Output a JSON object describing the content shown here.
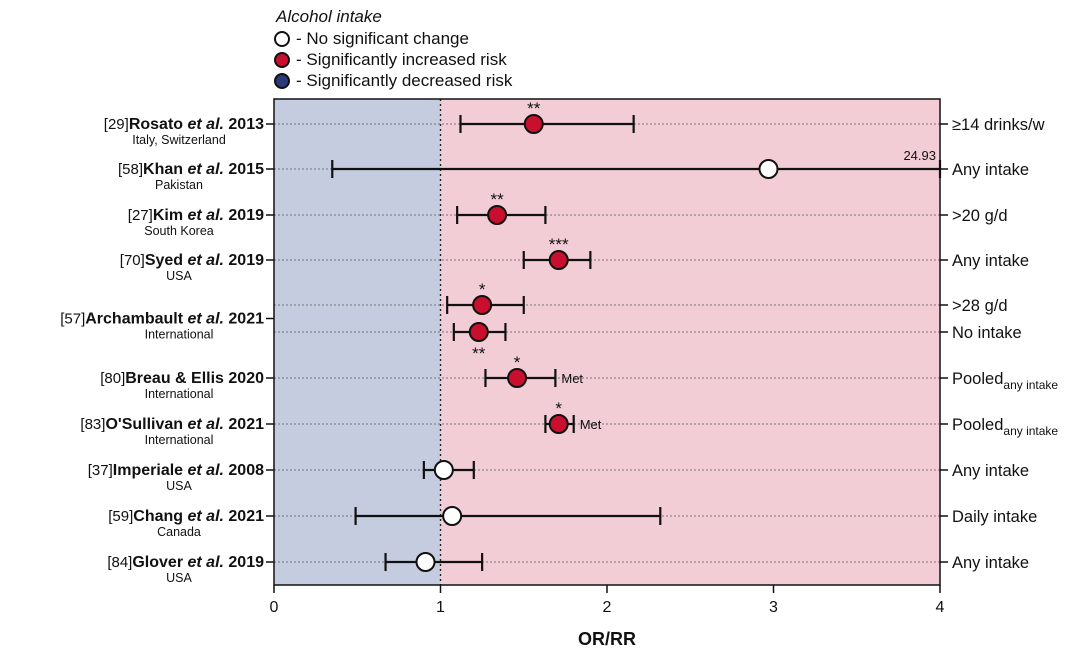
{
  "legend": {
    "title": "Alcohol intake",
    "items": [
      {
        "label": "- No significant change",
        "color": "#ffffff"
      },
      {
        "label": "- Significantly increased risk",
        "color": "#c8102e"
      },
      {
        "label": "- Significantly decreased risk",
        "color": "#2b3a78"
      }
    ]
  },
  "colors": {
    "decreased_region": "#c5ccdf",
    "increased_region": "#f2cdd5",
    "no_change": "#ffffff",
    "increased": "#c8102e",
    "decreased": "#2b3a78"
  },
  "chart_data": {
    "type": "scatter",
    "subtype": "forest-plot",
    "xlabel": "OR/RR",
    "xlim": [
      0,
      4
    ],
    "xticks": [
      0,
      1,
      2,
      3,
      4
    ],
    "reference_line": 1,
    "studies": [
      {
        "ref": "[29]",
        "author": "Rosato",
        "etal": true,
        "year": "2013",
        "location": "Italy, Switzerland",
        "rows": [
          {
            "estimate": 1.56,
            "lower": 1.12,
            "upper": 2.16,
            "sig": "**",
            "sig_pos": "above",
            "result": "increased",
            "exposure": "≥14 drinks/w"
          }
        ]
      },
      {
        "ref": "[58]",
        "author": "Khan",
        "etal": true,
        "year": "2015",
        "location": "Pakistan",
        "rows": [
          {
            "estimate": 2.97,
            "lower": 0.35,
            "upper": 24.93,
            "upper_label": "24.93",
            "sig": "",
            "result": "none",
            "exposure": "Any intake"
          }
        ]
      },
      {
        "ref": "[27]",
        "author": "Kim",
        "etal": true,
        "year": "2019",
        "location": "South Korea",
        "rows": [
          {
            "estimate": 1.34,
            "lower": 1.1,
            "upper": 1.63,
            "sig": "**",
            "sig_pos": "above",
            "result": "increased",
            "exposure": ">20 g/d"
          }
        ]
      },
      {
        "ref": "[70]",
        "author": "Syed",
        "etal": true,
        "year": "2019",
        "location": "USA",
        "rows": [
          {
            "estimate": 1.71,
            "lower": 1.5,
            "upper": 1.9,
            "sig": "***",
            "sig_pos": "above",
            "result": "increased",
            "exposure": "Any intake"
          }
        ]
      },
      {
        "ref": "[57]",
        "author": "Archambault",
        "etal": true,
        "year": "2021",
        "location": "International",
        "rows": [
          {
            "estimate": 1.25,
            "lower": 1.04,
            "upper": 1.5,
            "sig": "*",
            "sig_pos": "above",
            "result": "increased",
            "exposure": ">28 g/d"
          },
          {
            "estimate": 1.23,
            "lower": 1.08,
            "upper": 1.39,
            "sig": "**",
            "sig_pos": "below",
            "result": "increased",
            "exposure": "No intake"
          }
        ]
      },
      {
        "ref": "[80]",
        "author": "Breau & Ellis",
        "etal": false,
        "year": "2020",
        "location": "International",
        "rows": [
          {
            "estimate": 1.46,
            "lower": 1.27,
            "upper": 1.69,
            "sig": "*",
            "sig_pos": "above",
            "result": "increased",
            "note": "Met",
            "exposure": "Pooled",
            "exposure_sub": "any intake"
          }
        ]
      },
      {
        "ref": "[83]",
        "author": "O'Sullivan",
        "etal": true,
        "year": "2021",
        "location": "International",
        "rows": [
          {
            "estimate": 1.71,
            "lower": 1.63,
            "upper": 1.8,
            "sig": "*",
            "sig_pos": "above",
            "result": "increased",
            "note": "Met",
            "exposure": "Pooled",
            "exposure_sub": "any intake"
          }
        ]
      },
      {
        "ref": "[37]",
        "author": "Imperiale",
        "etal": true,
        "year": "2008",
        "location": "USA",
        "rows": [
          {
            "estimate": 1.02,
            "lower": 0.9,
            "upper": 1.2,
            "sig": "",
            "result": "none",
            "exposure": "Any intake"
          }
        ]
      },
      {
        "ref": "[59]",
        "author": "Chang",
        "etal": true,
        "year": "2021",
        "location": "Canada",
        "rows": [
          {
            "estimate": 1.07,
            "lower": 0.49,
            "upper": 2.32,
            "sig": "",
            "result": "none",
            "exposure": "Daily intake"
          }
        ]
      },
      {
        "ref": "[84]",
        "author": "Glover",
        "etal": true,
        "year": "2019",
        "location": "USA",
        "rows": [
          {
            "estimate": 0.91,
            "lower": 0.67,
            "upper": 1.25,
            "sig": "",
            "result": "none",
            "exposure": "Any intake"
          }
        ]
      }
    ]
  }
}
